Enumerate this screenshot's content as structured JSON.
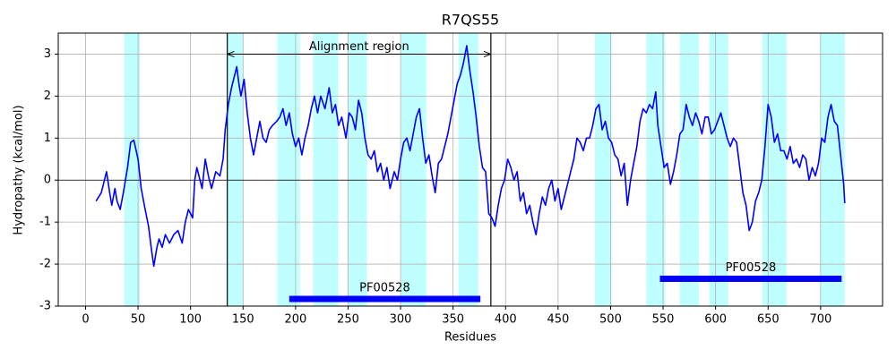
{
  "chart_data": {
    "type": "line",
    "title": "R7QS55",
    "xlabel": "Residues",
    "ylabel": "Hydropathy (kcal/mol)",
    "xlim": [
      -26,
      759
    ],
    "ylim": [
      -3,
      3.5
    ],
    "xticks": [
      0,
      50,
      100,
      150,
      200,
      250,
      300,
      350,
      400,
      450,
      500,
      550,
      600,
      650,
      700
    ],
    "yticks": [
      -3,
      -2,
      -1,
      0,
      1,
      2,
      3
    ],
    "grid": true,
    "color": "#0000ff",
    "zero_line": 0,
    "shade_color": "#bfffff",
    "shaded_regions": [
      [
        36.7,
        52
      ],
      [
        135.7,
        150
      ],
      [
        182.7,
        204
      ],
      [
        216.8,
        240.7
      ],
      [
        250,
        268
      ],
      [
        300.5,
        324.4
      ],
      [
        355,
        374
      ],
      [
        485,
        501
      ],
      [
        534,
        552
      ],
      [
        566,
        584
      ],
      [
        594,
        612
      ],
      [
        644.5,
        667.6
      ],
      [
        700,
        723
      ]
    ],
    "alignment_region": {
      "label": "Alignment region",
      "start": 135,
      "end": 386,
      "y": 3
    },
    "domains": [
      {
        "name": "PF00528",
        "start": 194,
        "end": 376,
        "y": -2.83
      },
      {
        "name": "PF00528",
        "start": 547,
        "end": 720,
        "y": -2.35
      }
    ],
    "domain_color": "#0000ff",
    "x": [
      10,
      15,
      20,
      23,
      25,
      28,
      30,
      33,
      36,
      40,
      43,
      46,
      50,
      53,
      56,
      60,
      63,
      65,
      68,
      70,
      73,
      76,
      80,
      84,
      88,
      92,
      95,
      98,
      102,
      104,
      106,
      108,
      111,
      114,
      117,
      120,
      124,
      128,
      131,
      133,
      136,
      139,
      142,
      144,
      146,
      148,
      151,
      154,
      157,
      160,
      163,
      166,
      169,
      172,
      175,
      178,
      182,
      185,
      188,
      191,
      194,
      197,
      200,
      203,
      206,
      209,
      212,
      215,
      218,
      221,
      224,
      228,
      232,
      235,
      238,
      241,
      244,
      248,
      251,
      254,
      257,
      260,
      263,
      266,
      269,
      272,
      275,
      278,
      281,
      284,
      287,
      290,
      294,
      297,
      300,
      303,
      306,
      309,
      312,
      315,
      318,
      321,
      324,
      327,
      330,
      333,
      336,
      339,
      342,
      345,
      348,
      351,
      354,
      357,
      360,
      363,
      366,
      369,
      372,
      375,
      378,
      381,
      384,
      387,
      390,
      393,
      396,
      399,
      402,
      405,
      408,
      411,
      414,
      417,
      420,
      423,
      426,
      429,
      432,
      435,
      438,
      441,
      444,
      447,
      450,
      453,
      456,
      459,
      462,
      465,
      468,
      471,
      474,
      477,
      480,
      483,
      486,
      489,
      492,
      495,
      498,
      501,
      504,
      507,
      510,
      513,
      516,
      519,
      522,
      525,
      528,
      531,
      534,
      537,
      540,
      543,
      545,
      548,
      551,
      554,
      557,
      560,
      563,
      566,
      569,
      572,
      575,
      578,
      581,
      584,
      587,
      590,
      593,
      596,
      599,
      602,
      605,
      608,
      611,
      614,
      617,
      620,
      623,
      626,
      629,
      632,
      635,
      638,
      641,
      644,
      647,
      650,
      653,
      656,
      659,
      662,
      665,
      668,
      671,
      674,
      677,
      680,
      683,
      686,
      689,
      692,
      695,
      698,
      701,
      704,
      707,
      710,
      713,
      716,
      719,
      722,
      723
    ],
    "values": [
      -0.5,
      -0.3,
      0.2,
      -0.3,
      -0.6,
      -0.2,
      -0.5,
      -0.7,
      -0.3,
      0.3,
      0.9,
      0.95,
      0.5,
      -0.2,
      -0.6,
      -1.1,
      -1.7,
      -2.05,
      -1.6,
      -1.4,
      -1.6,
      -1.3,
      -1.5,
      -1.3,
      -1.2,
      -1.5,
      -1.0,
      -0.7,
      -0.9,
      0.0,
      0.3,
      0.1,
      -0.2,
      0.5,
      0.1,
      -0.2,
      0.2,
      0.1,
      0.5,
      1.2,
      1.8,
      2.2,
      2.5,
      2.7,
      2.3,
      2.0,
      2.4,
      1.6,
      1.0,
      0.6,
      1.0,
      1.4,
      1.0,
      0.9,
      1.2,
      1.3,
      1.4,
      1.5,
      1.7,
      1.3,
      1.6,
      1.1,
      0.8,
      1.0,
      0.6,
      1.0,
      1.3,
      1.7,
      2.0,
      1.6,
      2.0,
      1.7,
      2.2,
      1.6,
      1.8,
      1.3,
      1.5,
      1.0,
      1.6,
      1.5,
      1.2,
      1.9,
      1.6,
      1.0,
      0.6,
      0.5,
      0.7,
      0.2,
      0.4,
      0.0,
      0.3,
      -0.2,
      0.2,
      0.0,
      0.5,
      0.9,
      1.0,
      0.7,
      1.1,
      1.5,
      1.7,
      1.0,
      0.4,
      0.6,
      0.1,
      -0.3,
      0.4,
      0.5,
      0.8,
      1.1,
      1.5,
      1.9,
      2.3,
      2.5,
      2.8,
      3.2,
      2.6,
      2.1,
      1.5,
      0.8,
      0.3,
      0.2,
      -0.8,
      -0.9,
      -1.1,
      -0.6,
      -0.2,
      0.0,
      0.5,
      0.3,
      0.0,
      0.2,
      -0.5,
      -0.3,
      -0.8,
      -0.6,
      -1.0,
      -1.3,
      -0.8,
      -0.4,
      -0.6,
      -0.2,
      0.0,
      -0.5,
      -0.2,
      -0.7,
      -0.4,
      -0.1,
      0.2,
      0.5,
      1.0,
      0.9,
      0.7,
      1.0,
      1.0,
      1.3,
      1.7,
      1.8,
      1.2,
      1.4,
      1.0,
      0.9,
      0.6,
      0.5,
      0.1,
      0.4,
      -0.6,
      0.0,
      0.4,
      0.8,
      1.4,
      1.7,
      1.6,
      1.8,
      1.7,
      2.1,
      1.3,
      0.8,
      0.3,
      0.4,
      -0.1,
      0.2,
      0.6,
      1.1,
      1.2,
      1.8,
      1.5,
      1.3,
      1.6,
      1.4,
      1.1,
      1.5,
      1.5,
      1.1,
      1.2,
      1.4,
      1.6,
      1.3,
      1.0,
      0.8,
      1.0,
      0.9,
      0.3,
      -0.3,
      -0.6,
      -1.2,
      -1.0,
      -0.5,
      -0.3,
      0.0,
      0.8,
      1.8,
      1.5,
      0.9,
      1.1,
      0.7,
      0.7,
      0.5,
      0.8,
      0.4,
      0.5,
      0.3,
      0.6,
      0.5,
      0.0,
      0.3,
      0.1,
      0.4,
      1.0,
      0.9,
      1.5,
      1.8,
      1.4,
      1.3,
      0.6,
      -0.1,
      -0.55
    ]
  }
}
